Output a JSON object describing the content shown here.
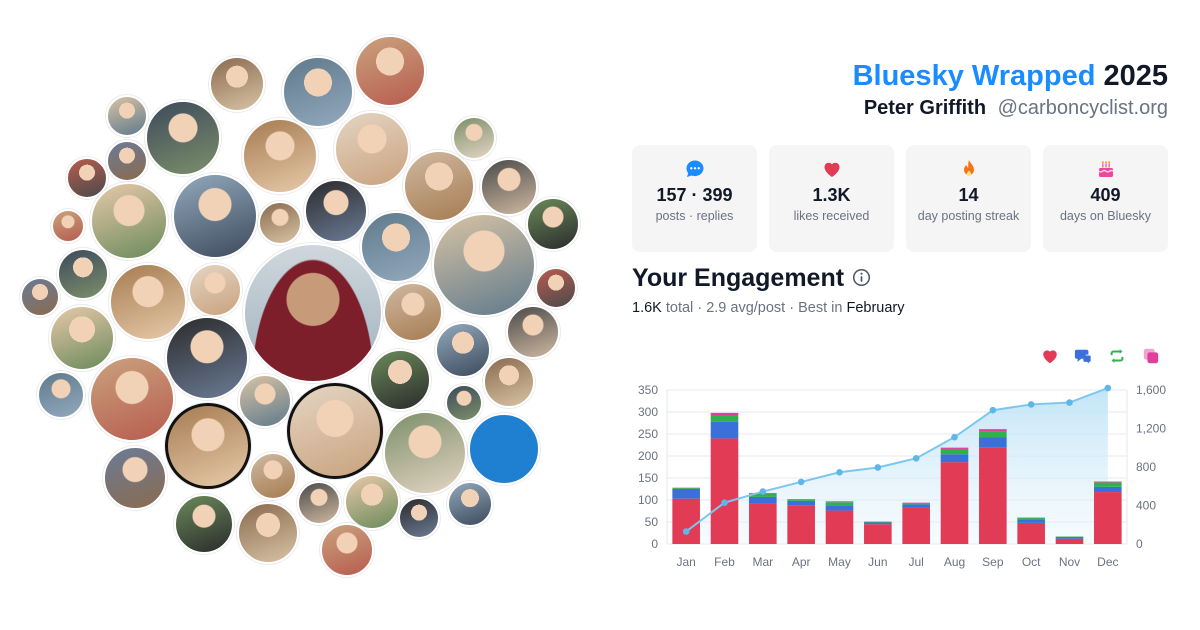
{
  "header": {
    "brand": "Bluesky Wrapped",
    "year": "2025",
    "name": "Peter Griffith",
    "handle": "@carboncyclist.org"
  },
  "stats": [
    {
      "icon": "chat-bubble-icon",
      "value": "157 · 399",
      "label": "posts · replies"
    },
    {
      "icon": "heart-icon",
      "value": "1.3K",
      "label": "likes received"
    },
    {
      "icon": "flame-icon",
      "value": "14",
      "label": "day posting streak"
    },
    {
      "icon": "cake-icon",
      "value": "409",
      "label": "days on Bluesky"
    }
  ],
  "engagement": {
    "title": "Your Engagement",
    "total": "1.6K",
    "total_word": "total",
    "avg": "2.9 avg/post",
    "best_prefix": "Best in",
    "best_month": "February"
  },
  "legend_icons": [
    "heart-icon",
    "reply-icon",
    "repost-icon",
    "quote-icon"
  ],
  "colors": {
    "brand": "#1a8cff",
    "likes": "#e23b55",
    "replies": "#3b6fd9",
    "reposts": "#2fb24c",
    "quotes": "#e0409a",
    "cumulative": "#7cc7ef",
    "stat_bg": "#f5f5f6"
  },
  "chart_data": {
    "type": "bar",
    "categories": [
      "Jan",
      "Feb",
      "Mar",
      "Apr",
      "May",
      "Jun",
      "Jul",
      "Aug",
      "Sep",
      "Oct",
      "Nov",
      "Dec"
    ],
    "series": [
      {
        "values": [
          103,
          240,
          93,
          88,
          76,
          45,
          82,
          186,
          220,
          48,
          12,
          118
        ]
      },
      {
        "values": [
          22,
          38,
          14,
          10,
          12,
          4,
          8,
          18,
          22,
          8,
          4,
          12
        ]
      },
      {
        "values": [
          2,
          14,
          8,
          3,
          7,
          2,
          3,
          12,
          14,
          3,
          1,
          10
        ]
      },
      {
        "values": [
          1,
          6,
          1,
          1,
          2,
          0,
          1,
          3,
          5,
          1,
          0,
          2
        ]
      }
    ],
    "cumulative": {
      "values": [
        130,
        430,
        545,
        645,
        745,
        795,
        890,
        1110,
        1390,
        1450,
        1470,
        1620
      ]
    },
    "y_left_ticks": [
      "0",
      "50",
      "100",
      "150",
      "200",
      "250",
      "300",
      "350"
    ],
    "y_right_ticks": [
      "0",
      "400",
      "800",
      "1,200",
      "1,600"
    ],
    "ylim": [
      0,
      350
    ],
    "y2lim": [
      0,
      1600
    ],
    "grid": true
  }
}
